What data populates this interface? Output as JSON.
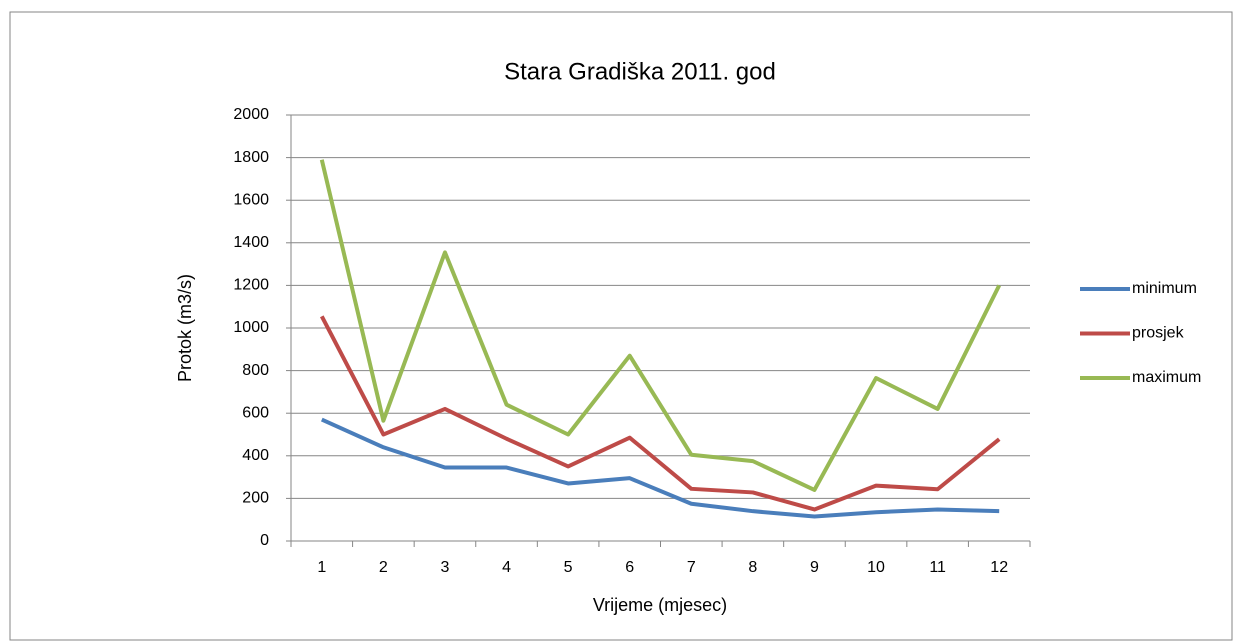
{
  "chart_data": {
    "type": "line",
    "title": "Stara Gradiška 2011. god",
    "x_label": "Vrijeme (mjesec)",
    "y_label": "Protok (m3/s)",
    "categories": [
      "1",
      "2",
      "3",
      "4",
      "5",
      "6",
      "7",
      "8",
      "9",
      "10",
      "11",
      "12"
    ],
    "series": [
      {
        "name": "minimum",
        "color": "#4a7ebb",
        "values": [
          570,
          440,
          345,
          345,
          270,
          295,
          175,
          140,
          115,
          135,
          148,
          140
        ]
      },
      {
        "name": "prosjek",
        "color": "#be4b48",
        "values": [
          1055,
          500,
          620,
          480,
          350,
          485,
          245,
          228,
          148,
          260,
          243,
          478
        ]
      },
      {
        "name": "maximum",
        "color": "#98b954",
        "values": [
          1790,
          565,
          1355,
          640,
          500,
          870,
          405,
          375,
          240,
          765,
          620,
          1200
        ]
      }
    ],
    "ylim": [
      0,
      2000
    ],
    "yticks": [
      0,
      200,
      400,
      600,
      800,
      1000,
      1200,
      1400,
      1600,
      1800,
      2000
    ],
    "grid": true,
    "legend": "right"
  }
}
